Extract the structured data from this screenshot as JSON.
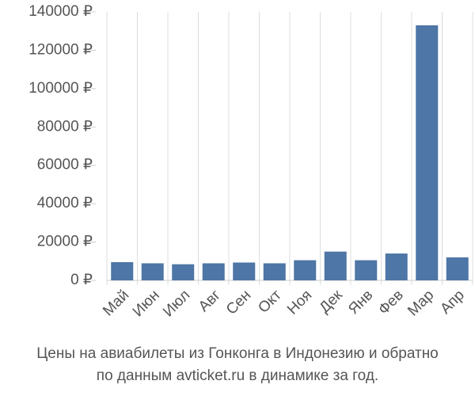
{
  "chart_data": {
    "type": "bar",
    "title": [
      "Цены на авиабилеты из Гонконга в Индонезию и обратно",
      "по данным avticket.ru в динамике за год."
    ],
    "categories": [
      "Май",
      "Июн",
      "Июл",
      "Авг",
      "Сен",
      "Окт",
      "Ноя",
      "Дек",
      "Янв",
      "Фев",
      "Мар",
      "Апр"
    ],
    "values": [
      9500,
      8900,
      8400,
      8900,
      9300,
      8900,
      10500,
      15000,
      10500,
      14000,
      133000,
      12000
    ],
    "color": "#4e76a6",
    "ylim": [
      0,
      140000
    ],
    "yticks": [
      {
        "value": 0,
        "label": "0 ₽"
      },
      {
        "value": 20000,
        "label": "20000 ₽"
      },
      {
        "value": 40000,
        "label": "40000 ₽"
      },
      {
        "value": 60000,
        "label": "60000 ₽"
      },
      {
        "value": 80000,
        "label": "80000 ₽"
      },
      {
        "value": 100000,
        "label": "100000 ₽"
      },
      {
        "value": 120000,
        "label": "120000 ₽"
      },
      {
        "value": 140000,
        "label": "140000 ₽"
      }
    ]
  }
}
